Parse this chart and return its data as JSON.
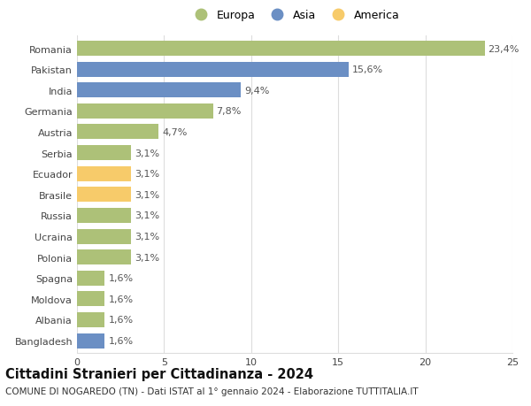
{
  "countries": [
    "Romania",
    "Pakistan",
    "India",
    "Germania",
    "Austria",
    "Serbia",
    "Ecuador",
    "Brasile",
    "Russia",
    "Ucraina",
    "Polonia",
    "Spagna",
    "Moldova",
    "Albania",
    "Bangladesh"
  ],
  "values": [
    23.4,
    15.6,
    9.4,
    7.8,
    4.7,
    3.1,
    3.1,
    3.1,
    3.1,
    3.1,
    3.1,
    1.6,
    1.6,
    1.6,
    1.6
  ],
  "labels": [
    "23,4%",
    "15,6%",
    "9,4%",
    "7,8%",
    "4,7%",
    "3,1%",
    "3,1%",
    "3,1%",
    "3,1%",
    "3,1%",
    "3,1%",
    "1,6%",
    "1,6%",
    "1,6%",
    "1,6%"
  ],
  "colors": [
    "#adc178",
    "#6b8fc4",
    "#6b8fc4",
    "#adc178",
    "#adc178",
    "#adc178",
    "#f7cb6a",
    "#f7cb6a",
    "#adc178",
    "#adc178",
    "#adc178",
    "#adc178",
    "#adc178",
    "#adc178",
    "#6b8fc4"
  ],
  "legend_labels": [
    "Europa",
    "Asia",
    "America"
  ],
  "legend_colors": [
    "#adc178",
    "#6b8fc4",
    "#f7cb6a"
  ],
  "title": "Cittadini Stranieri per Cittadinanza - 2024",
  "subtitle": "COMUNE DI NOGAREDO (TN) - Dati ISTAT al 1° gennaio 2024 - Elaborazione TUTTITALIA.IT",
  "xlim": [
    0,
    25
  ],
  "xticks": [
    0,
    5,
    10,
    15,
    20,
    25
  ],
  "bg_color": "#ffffff",
  "grid_color": "#dddddd",
  "bar_height": 0.72,
  "label_fontsize": 8,
  "tick_fontsize": 8,
  "title_fontsize": 10.5,
  "subtitle_fontsize": 7.5
}
